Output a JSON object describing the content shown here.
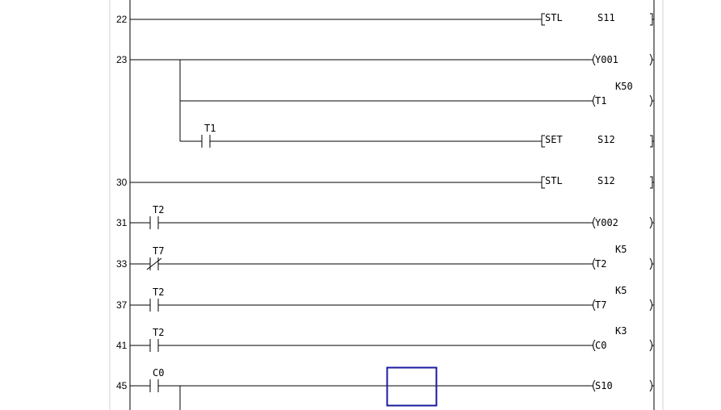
{
  "colors": {
    "cursor": "#1a1aa0",
    "rail": "#000000",
    "gutter": "#d0d0d0"
  },
  "rungs": [
    {
      "step": "22",
      "contacts": [],
      "output": {
        "kind": "instruction",
        "op": "STL",
        "operand": "S11"
      }
    },
    {
      "step": "23",
      "contacts": [],
      "output": {
        "kind": "coil",
        "device": "Y001"
      },
      "branches": [
        {
          "contacts": [],
          "output": {
            "kind": "coil",
            "device": "T1",
            "setting": "K50"
          }
        },
        {
          "contacts": [
            {
              "device": "T1",
              "type": "no"
            }
          ],
          "output": {
            "kind": "instruction",
            "op": "SET",
            "operand": "S12"
          }
        }
      ]
    },
    {
      "step": "30",
      "contacts": [],
      "output": {
        "kind": "instruction",
        "op": "STL",
        "operand": "S12"
      }
    },
    {
      "step": "31",
      "contacts": [
        {
          "device": "T2",
          "type": "no"
        }
      ],
      "output": {
        "kind": "coil",
        "device": "Y002"
      }
    },
    {
      "step": "33",
      "contacts": [
        {
          "device": "T7",
          "type": "nc"
        }
      ],
      "output": {
        "kind": "coil",
        "device": "T2",
        "setting": "K5"
      }
    },
    {
      "step": "37",
      "contacts": [
        {
          "device": "T2",
          "type": "no"
        }
      ],
      "output": {
        "kind": "coil",
        "device": "T7",
        "setting": "K5"
      }
    },
    {
      "step": "41",
      "contacts": [
        {
          "device": "T2",
          "type": "no"
        }
      ],
      "output": {
        "kind": "coil",
        "device": "C0",
        "setting": "K3"
      }
    },
    {
      "step": "45",
      "contacts": [
        {
          "device": "C0",
          "type": "no"
        }
      ],
      "output": {
        "kind": "coil",
        "device": "S10"
      }
    }
  ]
}
